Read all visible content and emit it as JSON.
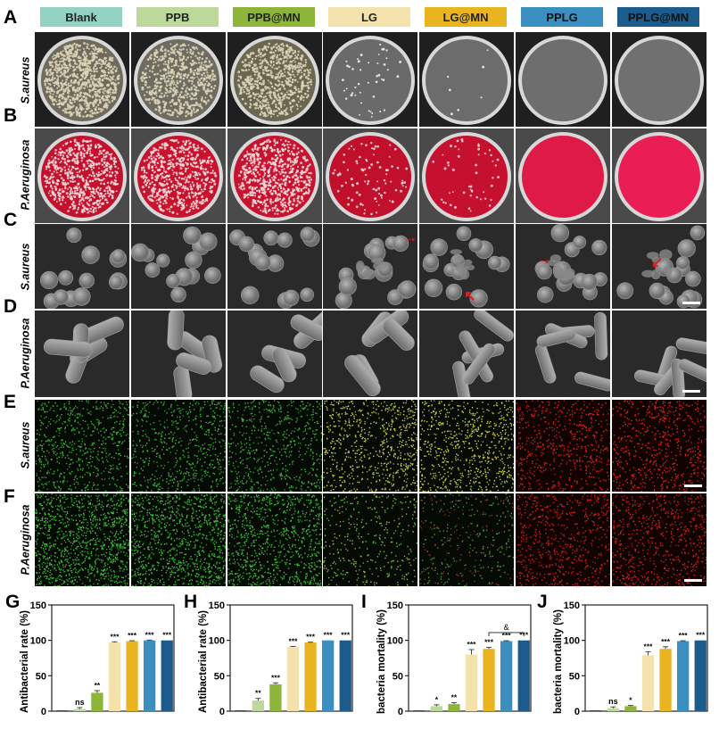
{
  "groups": [
    {
      "label": "Blank",
      "color": "#93d3c3"
    },
    {
      "label": "PPB",
      "color": "#bcd89a"
    },
    {
      "label": "PPB@MN",
      "color": "#8cb53a"
    },
    {
      "label": "LG",
      "color": "#f4e2ad"
    },
    {
      "label": "LG@MN",
      "color": "#e8b521"
    },
    {
      "label": "PPLG",
      "color": "#3b8fc0"
    },
    {
      "label": "PPLG@MN",
      "color": "#1b5c8c"
    }
  ],
  "panels": {
    "A": {
      "letter": "A",
      "row_label": "S.aureus",
      "type": "agar-plate-photo"
    },
    "B": {
      "letter": "B",
      "row_label": "P.Aeruginosa",
      "type": "agar-plate-photo"
    },
    "C": {
      "letter": "C",
      "row_label": "S.aureus",
      "type": "SEM"
    },
    "D": {
      "letter": "D",
      "row_label": "P.Aeruginosa",
      "type": "SEM"
    },
    "E": {
      "letter": "E",
      "row_label": "S.aureus",
      "type": "live-dead-fluorescence"
    },
    "F": {
      "letter": "F",
      "row_label": "P.Aeruginosa",
      "type": "live-dead-fluorescence"
    }
  },
  "chart_data": [
    {
      "panel": "G",
      "type": "bar",
      "ylabel": "Antibacterial rate (%)",
      "xlabel": "",
      "ylim": [
        0,
        150
      ],
      "yticks": [
        0,
        50,
        100,
        150
      ],
      "categories": [
        "Blank",
        "PPB",
        "PPB@MN",
        "LG",
        "LG@MN",
        "PPLG",
        "PPLG@MN"
      ],
      "values": [
        0,
        3,
        26,
        97,
        99,
        100,
        100
      ],
      "errors": [
        0,
        2,
        3,
        1,
        0.5,
        0.5,
        0
      ],
      "significance": [
        "",
        "ns",
        "**",
        "***",
        "***",
        "***",
        "***"
      ]
    },
    {
      "panel": "H",
      "type": "bar",
      "ylabel": "Antibacterial rate (%)",
      "xlabel": "",
      "ylim": [
        0,
        150
      ],
      "yticks": [
        0,
        50,
        100,
        150
      ],
      "categories": [
        "Blank",
        "PPB",
        "PPB@MN",
        "LG",
        "LG@MN",
        "PPLG",
        "PPLG@MN"
      ],
      "values": [
        0,
        15,
        38,
        91,
        97,
        100,
        100
      ],
      "errors": [
        0,
        3,
        2,
        0.5,
        0.5,
        0,
        0
      ],
      "significance": [
        "",
        "**",
        "***",
        "***",
        "***",
        "***",
        "***"
      ]
    },
    {
      "panel": "I",
      "type": "bar",
      "ylabel": "bacteria mortality (%)",
      "xlabel": "",
      "ylim": [
        0,
        150
      ],
      "yticks": [
        0,
        50,
        100,
        150
      ],
      "categories": [
        "Blank",
        "PPB",
        "PPB@MN",
        "LG",
        "LG@MN",
        "PPLG",
        "PPLG@MN"
      ],
      "values": [
        0,
        7,
        10,
        80,
        88,
        99,
        100
      ],
      "errors": [
        0,
        2,
        2,
        7,
        2,
        0.5,
        0
      ],
      "significance": [
        "",
        "*",
        "**",
        "***",
        "***",
        "***",
        "***"
      ],
      "bracket": {
        "from": 4,
        "to": 6,
        "label": "&"
      }
    },
    {
      "panel": "J",
      "type": "bar",
      "ylabel": "bacteria mortality (%)",
      "xlabel": "",
      "ylim": [
        0,
        150
      ],
      "yticks": [
        0,
        50,
        100,
        150
      ],
      "categories": [
        "Blank",
        "PPB",
        "PPB@MN",
        "LG",
        "LG@MN",
        "PPLG",
        "PPLG@MN"
      ],
      "values": [
        0,
        4,
        7,
        79,
        88,
        99,
        100
      ],
      "errors": [
        0,
        2,
        1,
        5,
        3,
        0.5,
        0
      ],
      "significance": [
        "",
        "ns",
        "*",
        "***",
        "***",
        "***",
        "***"
      ]
    }
  ]
}
